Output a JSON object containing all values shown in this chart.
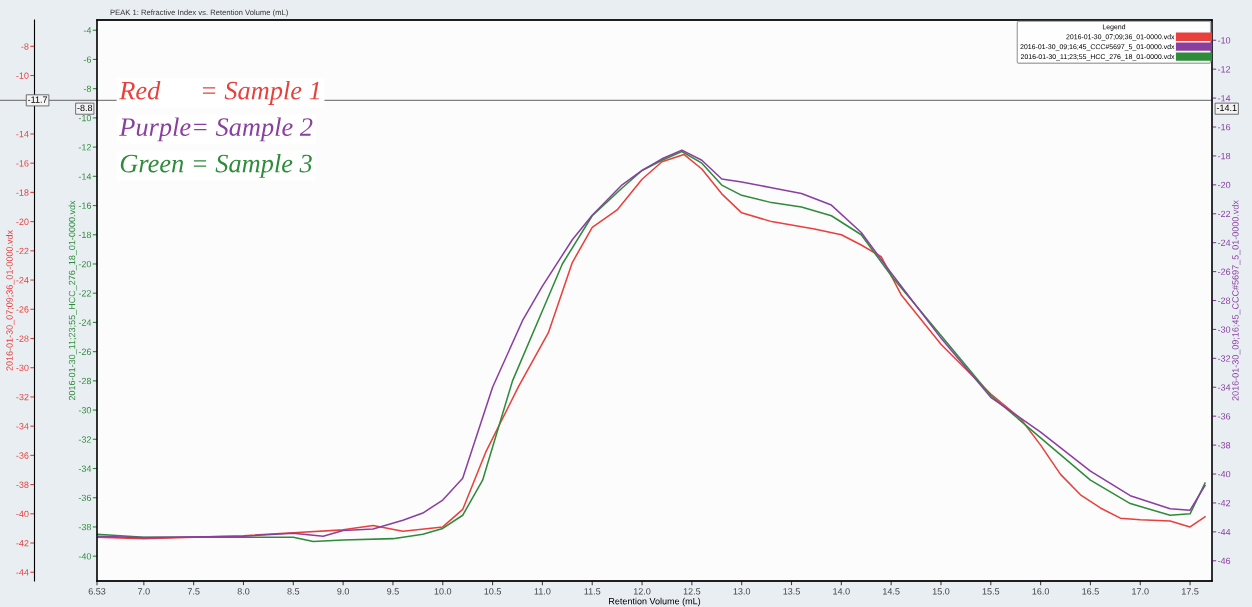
{
  "chart_data": {
    "type": "line",
    "title": "PEAK 1: Refractive Index vs. Retention Volume (mL)",
    "xlabel": "Retention Volume (mL)",
    "ylabel": "2016-01-30_07;09;36_01-0000.vdx",
    "y2label": "2016-01-30_09;16;45_CCC#5697_5_01-0000.vdx",
    "y3label": "2016-01-30_11;23;55_HCC_276_18_01-0000.vdx",
    "legend_title": "Legend",
    "legend": "top right",
    "grid": false,
    "marker": "none",
    "line_style": "solid",
    "annotations": [
      "Red      = Sample 1",
      "Purple= Sample 2",
      "Green = Sample 3",
      "-8.8",
      "-14.1"
    ],
    "xlim": [
      6.53,
      17.72
    ],
    "xticks": [
      6.53,
      {
        "value": 7,
        "label": "7.0"
      },
      7.5,
      {
        "value": 8,
        "label": "8.0"
      },
      8.5,
      {
        "value": 9,
        "label": "9.0"
      },
      9.5,
      {
        "value": 10,
        "label": "10.0"
      },
      10.5,
      {
        "value": 11,
        "label": "11.0"
      },
      11.5,
      {
        "value": 12,
        "label": "12.0"
      },
      12.5,
      {
        "value": 13,
        "label": "13.0"
      },
      13.5,
      {
        "value": 14,
        "label": "14.0"
      },
      14.5,
      {
        "value": 15,
        "label": "15.0"
      },
      15.5,
      {
        "value": 16,
        "label": "16.0"
      },
      16.5,
      {
        "value": 17,
        "label": "17.0"
      },
      17.5
    ],
    "ylim": [
      -44.6,
      -6.2
    ],
    "yticks": [
      -8,
      -10,
      -14,
      -16,
      -18,
      -20,
      -22,
      -24,
      -26,
      -28,
      -30,
      -32,
      -34,
      -36,
      -38,
      -40,
      -42,
      -44
    ],
    "y2lim": [
      -47.4,
      -8.6
    ],
    "y2ticks": [
      -10,
      -12,
      -14,
      -16,
      -18,
      -20,
      -22,
      -24,
      -26,
      -28,
      -30,
      -32,
      -34,
      -36,
      -38,
      -40,
      -42,
      -44,
      -46
    ],
    "y3lim": [
      -41.7,
      -3.3
    ],
    "y3ticks": [
      -4,
      -6,
      -8,
      -10,
      -12,
      -14,
      -16,
      -18,
      -20,
      -22,
      -24,
      -26,
      -28,
      -30,
      -32,
      -34,
      -36,
      -38,
      -40
    ],
    "ref_lines": [
      {
        "axis": "y",
        "value": -11.7,
        "label": "-11.7",
        "color": "#808080"
      }
    ],
    "series": [
      {
        "name": "2016-01-30_07;09;36_01-0000.vdx",
        "color": "#e8403c",
        "axis": "y",
        "x": [
          6.53,
          7.0,
          7.5,
          8.0,
          8.5,
          9.0,
          9.3,
          9.6,
          10.0,
          10.2,
          10.43,
          10.76,
          11.06,
          11.3,
          11.5,
          11.75,
          12.0,
          12.2,
          12.42,
          12.6,
          12.8,
          13.0,
          13.3,
          13.73,
          14.0,
          14.2,
          14.4,
          14.6,
          15.0,
          15.5,
          15.8,
          16.0,
          16.2,
          16.4,
          16.6,
          16.8,
          17.0,
          17.3,
          17.5,
          17.65
        ],
        "values": [
          -41.6,
          -41.7,
          -41.6,
          -41.5,
          -41.3,
          -41.1,
          -40.8,
          -41.2,
          -40.9,
          -39.7,
          -35.8,
          -31.3,
          -27.6,
          -22.8,
          -20.4,
          -19.2,
          -17.1,
          -15.9,
          -15.4,
          -16.4,
          -18.1,
          -19.4,
          -20.0,
          -20.5,
          -20.9,
          -21.6,
          -22.4,
          -25.0,
          -28.4,
          -31.8,
          -33.5,
          -35.3,
          -37.3,
          -38.7,
          -39.6,
          -40.3,
          -40.4,
          -40.5,
          -40.9,
          -40.2
        ]
      },
      {
        "name": "2016-01-30_09;16;45_CCC#5697_5_01-0000.vdx",
        "color": "#8a3fa0",
        "axis": "y2",
        "x": [
          6.53,
          7.0,
          8.0,
          8.5,
          8.8,
          9.0,
          9.3,
          9.6,
          9.8,
          10.0,
          10.2,
          10.5,
          10.8,
          11.0,
          11.3,
          11.5,
          11.8,
          12.0,
          12.2,
          12.4,
          12.6,
          12.8,
          13.0,
          13.3,
          13.6,
          13.9,
          14.2,
          14.5,
          15.0,
          15.5,
          16.0,
          16.5,
          16.9,
          17.3,
          17.5,
          17.65
        ],
        "values": [
          -44.3,
          -44.4,
          -44.3,
          -44.1,
          -44.3,
          -43.9,
          -43.8,
          -43.2,
          -42.7,
          -41.8,
          -40.3,
          -34.0,
          -29.4,
          -27.0,
          -23.8,
          -22.1,
          -20.0,
          -19.0,
          -18.2,
          -17.6,
          -18.3,
          -19.6,
          -19.8,
          -20.2,
          -20.6,
          -21.4,
          -23.3,
          -26.1,
          -30.6,
          -34.7,
          -37.1,
          -39.8,
          -41.5,
          -42.4,
          -42.5,
          -40.8
        ]
      },
      {
        "name": "2016-01-30_11;23;55_HCC_276_18_01-0000.vdx",
        "color": "#2e8b3a",
        "axis": "y3",
        "x": [
          6.53,
          7.0,
          7.5,
          8.0,
          8.5,
          8.7,
          9.0,
          9.5,
          9.8,
          10.0,
          10.2,
          10.4,
          10.7,
          11.0,
          11.2,
          11.5,
          11.8,
          12.0,
          12.2,
          12.4,
          12.6,
          12.8,
          13.0,
          13.3,
          13.6,
          13.9,
          14.2,
          14.5,
          15.0,
          15.5,
          16.0,
          16.5,
          16.9,
          17.3,
          17.5,
          17.65
        ],
        "values": [
          -38.5,
          -38.7,
          -38.7,
          -38.7,
          -38.7,
          -39.0,
          -38.9,
          -38.8,
          -38.5,
          -38.1,
          -37.2,
          -34.8,
          -28.0,
          -23.2,
          -20.0,
          -16.7,
          -14.8,
          -13.6,
          -12.9,
          -12.3,
          -13.1,
          -14.6,
          -15.3,
          -15.8,
          -16.1,
          -16.7,
          -18.0,
          -20.8,
          -24.9,
          -29.0,
          -31.9,
          -34.8,
          -36.4,
          -37.2,
          -37.1,
          -35.0
        ]
      }
    ]
  }
}
